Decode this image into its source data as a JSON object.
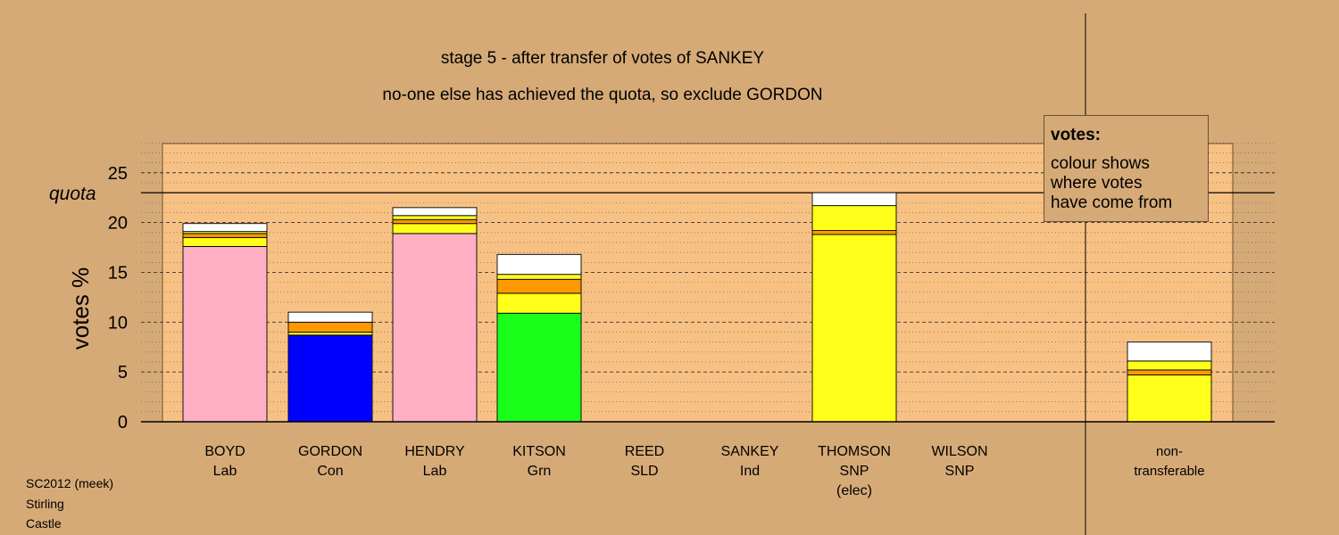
{
  "chart_data": {
    "type": "bar",
    "stacked": true,
    "title": "stage 5 - after transfer of votes of SANKEY",
    "subtitle": "no-one else has achieved the quota, so exclude GORDON",
    "ylabel": "votes %",
    "ylim": [
      0,
      28
    ],
    "yticks": [
      "0",
      "5",
      "10",
      "15",
      "20",
      "25"
    ],
    "quota": 23,
    "quota_label": "quota",
    "grid": true,
    "categories": [
      {
        "name": "BOYD",
        "party": "Lab",
        "note": ""
      },
      {
        "name": "GORDON",
        "party": "Con",
        "note": ""
      },
      {
        "name": "HENDRY",
        "party": "Lab",
        "note": ""
      },
      {
        "name": "KITSON",
        "party": "Grn",
        "note": ""
      },
      {
        "name": "REED",
        "party": "SLD",
        "note": ""
      },
      {
        "name": "SANKEY",
        "party": "Ind",
        "note": ""
      },
      {
        "name": "THOMSON",
        "party": "SNP",
        "note": "(elec)"
      },
      {
        "name": "WILSON",
        "party": "SNP",
        "note": ""
      },
      {
        "name": "non-",
        "party": "transferable",
        "note": ""
      }
    ],
    "stacks": [
      [
        {
          "value": 17.6,
          "color": "#ffb0c4"
        },
        {
          "value": 0.9,
          "color": "#ffff1a"
        },
        {
          "value": 0.4,
          "color": "#ff9900"
        },
        {
          "value": 0.2,
          "color": "#ffff1a"
        },
        {
          "value": 0.8,
          "color": "#ffffff"
        }
      ],
      [
        {
          "value": 8.7,
          "color": "#0000ff"
        },
        {
          "value": 0.3,
          "color": "#ffff1a"
        },
        {
          "value": 1.0,
          "color": "#ff9900"
        },
        {
          "value": 1.0,
          "color": "#ffffff"
        }
      ],
      [
        {
          "value": 18.9,
          "color": "#ffb0c4"
        },
        {
          "value": 1.0,
          "color": "#ffff1a"
        },
        {
          "value": 0.4,
          "color": "#ff9900"
        },
        {
          "value": 0.4,
          "color": "#ffff1a"
        },
        {
          "value": 0.8,
          "color": "#ffffff"
        }
      ],
      [
        {
          "value": 10.9,
          "color": "#1aff1a"
        },
        {
          "value": 2.0,
          "color": "#ffff1a"
        },
        {
          "value": 1.4,
          "color": "#ff9900"
        },
        {
          "value": 0.5,
          "color": "#ffff1a"
        },
        {
          "value": 2.0,
          "color": "#ffffff"
        }
      ],
      [],
      [],
      [
        {
          "value": 18.8,
          "color": "#ffff1a"
        },
        {
          "value": 0.4,
          "color": "#ff9900"
        },
        {
          "value": 2.5,
          "color": "#ffff1a"
        },
        {
          "value": 1.3,
          "color": "#ffffff"
        }
      ],
      [],
      [
        {
          "value": 4.7,
          "color": "#ffff1a"
        },
        {
          "value": 0.5,
          "color": "#ff9900"
        },
        {
          "value": 0.9,
          "color": "#ffff1a"
        },
        {
          "value": 1.9,
          "color": "#ffffff"
        }
      ]
    ]
  },
  "legend": {
    "title": "votes:",
    "lines": [
      "colour shows",
      "where votes",
      "have come from"
    ]
  },
  "footer": [
    "SC2012 (meek)",
    "Stirling",
    "Castle"
  ],
  "colors": {
    "background": "#d6aa77",
    "plot_area": "#f8c184"
  }
}
